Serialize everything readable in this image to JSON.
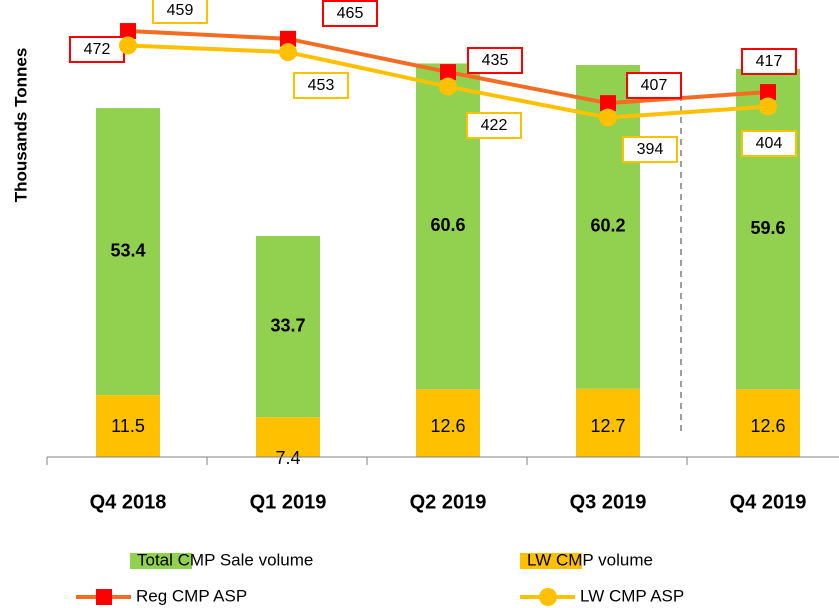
{
  "chart_data": {
    "type": "bar",
    "y_label": "Thousands Tonnes",
    "categories": [
      "Q4 2018",
      "Q1 2019",
      "Q2 2019",
      "Q3 2019",
      "Q4 2019"
    ],
    "ylim": [
      0,
      85
    ],
    "y2lim": [
      88,
      500
    ],
    "series": [
      {
        "name": "LW CMP volume",
        "type": "bar",
        "color": "#ffc000",
        "values": [
          11.5,
          7.4,
          12.6,
          12.7,
          12.6
        ]
      },
      {
        "name": "Total CMP Sale volume",
        "type": "bar",
        "color": "#92d050",
        "values": [
          53.4,
          33.7,
          60.6,
          60.2,
          59.6
        ]
      },
      {
        "name": "Reg CMP ASP",
        "type": "line",
        "axis": "y2",
        "color": "#f36c21",
        "marker_color": "#ff0000",
        "marker": "square",
        "values": [
          472,
          465,
          435,
          407,
          417
        ]
      },
      {
        "name": "LW CMP ASP",
        "type": "line",
        "axis": "y2",
        "color": "#ffc000",
        "marker_color": "#ffc000",
        "marker": "circle",
        "values": [
          459,
          453,
          422,
          394,
          404
        ]
      }
    ]
  }
}
